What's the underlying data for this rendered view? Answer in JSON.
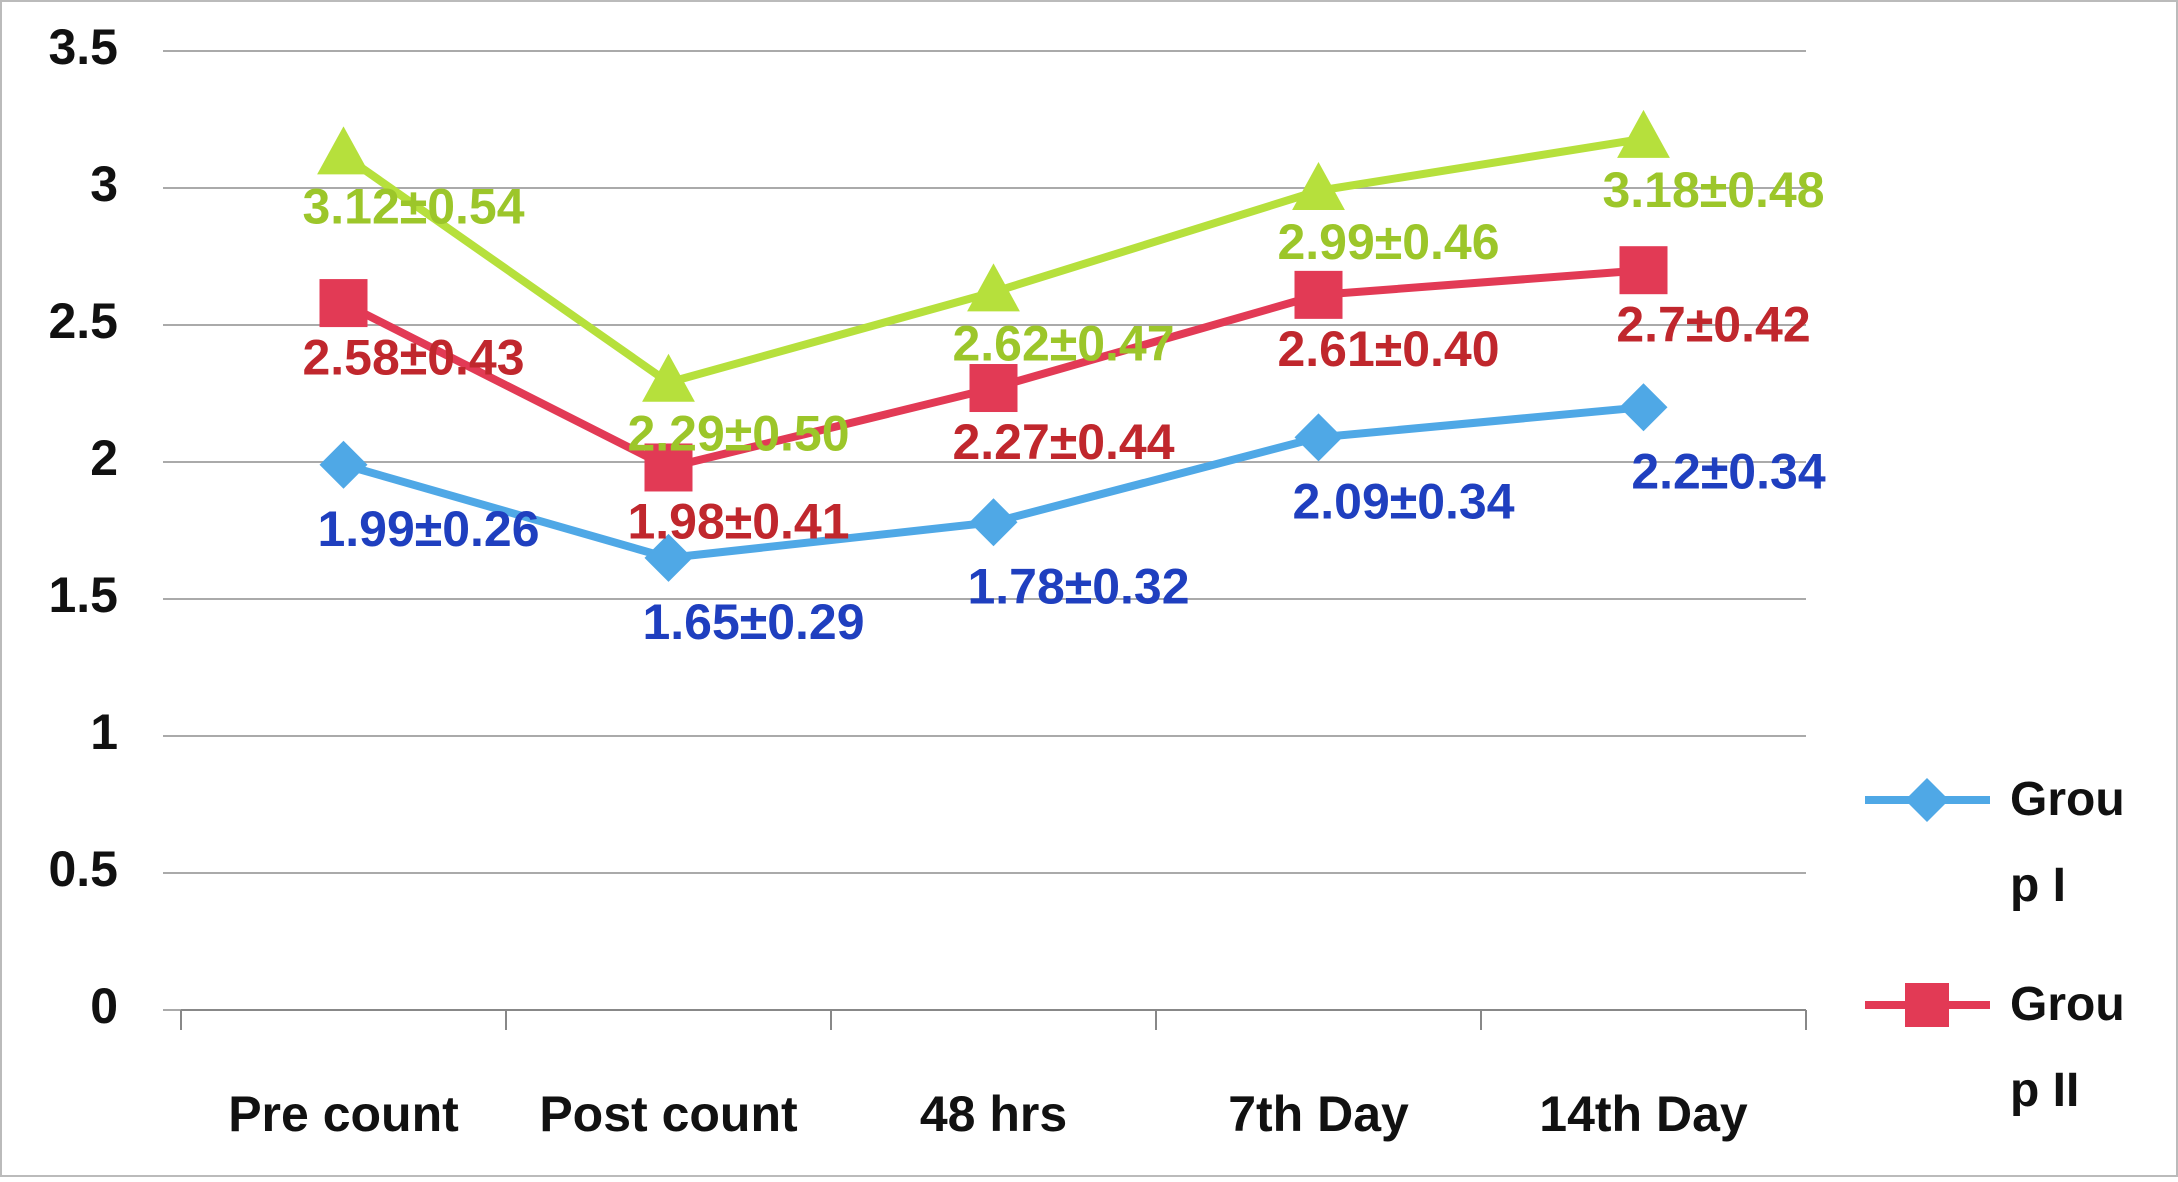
{
  "chart_data": {
    "type": "line",
    "categories": [
      "Pre count",
      "Post count",
      "48 hrs",
      "7th Day",
      "14th Day"
    ],
    "ylim": [
      0,
      3.5
    ],
    "yticks": [
      0,
      0.5,
      1,
      1.5,
      2,
      2.5,
      3,
      3.5
    ],
    "grid": true,
    "legend": "right",
    "series": [
      {
        "name": "Group I",
        "color": "#4fa8e6",
        "label_color": "#1f3fbf",
        "marker": "diamond",
        "values": [
          1.99,
          1.65,
          1.78,
          2.09,
          2.2
        ],
        "value_labels": [
          "1.99±0.26",
          "1.65±0.29",
          "1.78±0.32",
          "2.09±0.34",
          "2.2±0.34"
        ]
      },
      {
        "name": "Group II",
        "color": "#e23a55",
        "label_color": "#c0272d",
        "marker": "square",
        "values": [
          2.58,
          1.98,
          2.27,
          2.61,
          2.7
        ],
        "value_labels": [
          "2.58±0.43",
          "1.98±0.41",
          "2.27±0.44",
          "2.61±0.40",
          "2.7±0.42"
        ]
      },
      {
        "color": "#b6e03c",
        "label_color": "#9cc62a",
        "marker": "triangle",
        "values": [
          3.12,
          2.29,
          2.62,
          2.99,
          3.18
        ],
        "value_labels": [
          "3.12±0.54",
          "2.29±0.50",
          "2.62±0.47",
          "2.99±0.46",
          "3.18±0.48"
        ]
      }
    ]
  }
}
